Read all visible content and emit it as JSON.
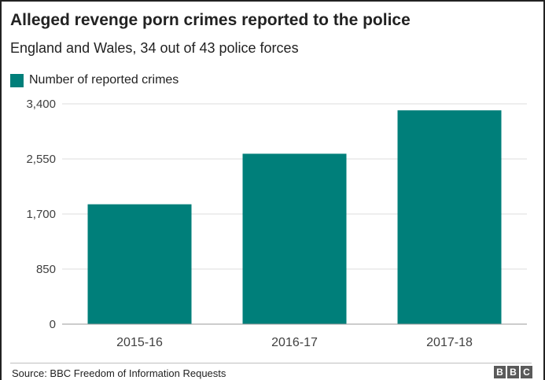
{
  "chart_data": {
    "type": "bar",
    "title": "Alleged revenge porn crimes reported to the police",
    "subtitle": "England and Wales, 34 out of 43 police forces",
    "categories": [
      "2015-16",
      "2016-17",
      "2017-18"
    ],
    "series": [
      {
        "name": "Number of reported crimes",
        "values": [
          1850,
          2630,
          3300
        ],
        "color": "#007f7a"
      }
    ],
    "ylim": [
      0,
      3400
    ],
    "yticks": [
      0,
      850,
      1700,
      2550,
      3400
    ],
    "ytick_labels": [
      "0",
      "850",
      "1,700",
      "2,550",
      "3,400"
    ],
    "grid": true,
    "legend": "top-left"
  },
  "footer": {
    "source": "Source: BBC Freedom of Information Requests",
    "logo_letters": [
      "B",
      "B",
      "C"
    ]
  },
  "colors": {
    "bar": "#007f7a",
    "grid": "#dddddd",
    "axis": "#999999"
  }
}
